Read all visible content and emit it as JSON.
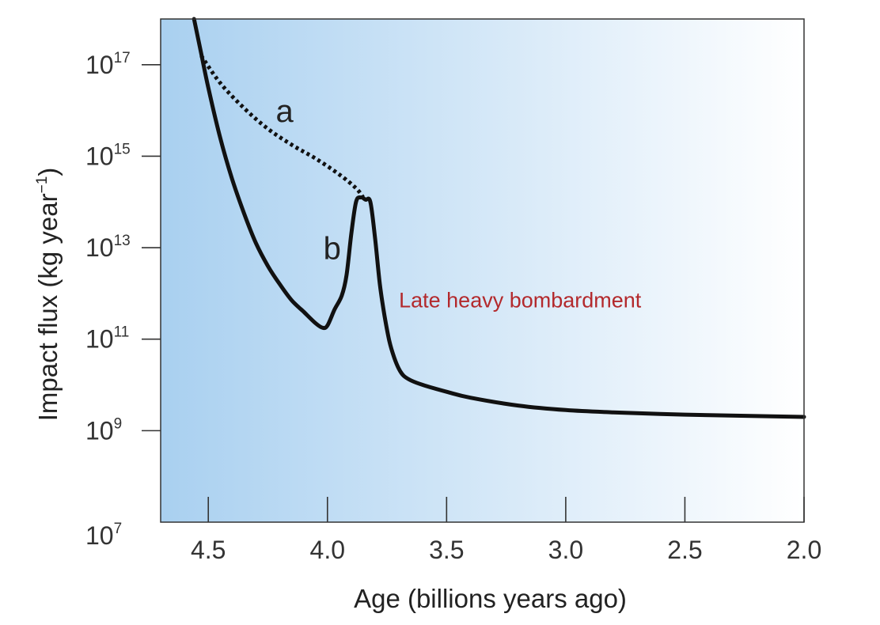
{
  "chart_data": {
    "type": "line",
    "title": "",
    "xlabel": "Age (billions years ago)",
    "ylabel_main": "Impact flux (kg year",
    "ylabel_sup": "−1",
    "ylabel_tail": ")",
    "xlim": [
      4.7,
      2.0
    ],
    "x_reversed": true,
    "ylim_exponent": [
      7,
      18
    ],
    "y_scale": "log10",
    "x_ticks": [
      {
        "value": 4.5,
        "label": "4.5"
      },
      {
        "value": 4.0,
        "label": "4.0"
      },
      {
        "value": 3.5,
        "label": "3.5"
      },
      {
        "value": 3.0,
        "label": "3.0"
      },
      {
        "value": 2.5,
        "label": "2.5"
      },
      {
        "value": 2.0,
        "label": "2.0"
      }
    ],
    "y_ticks": [
      {
        "exponent": 17,
        "base": "10",
        "sup": "17"
      },
      {
        "exponent": 15,
        "base": "10",
        "sup": "15"
      },
      {
        "exponent": 13,
        "base": "10",
        "sup": "13"
      },
      {
        "exponent": 11,
        "base": "10",
        "sup": "11"
      },
      {
        "exponent": 9,
        "base": "10",
        "sup": "9"
      },
      {
        "exponent": 7,
        "base": "10",
        "sup": "7"
      }
    ],
    "series": [
      {
        "label": "a",
        "style": "dotted",
        "x": [
          4.53,
          4.45,
          4.35,
          4.25,
          4.15,
          4.05,
          3.95,
          3.88,
          3.85
        ],
        "log_y": [
          17.2,
          16.6,
          16.05,
          15.6,
          15.25,
          14.95,
          14.6,
          14.3,
          14.1
        ]
      },
      {
        "label": "b",
        "style": "solid",
        "x": [
          4.56,
          4.53,
          4.5,
          4.45,
          4.4,
          4.35,
          4.3,
          4.25,
          4.2,
          4.15,
          4.1,
          4.05,
          4.02,
          4.0,
          3.97,
          3.94,
          3.92,
          3.9,
          3.88,
          3.86,
          3.84,
          3.82,
          3.8,
          3.78,
          3.76,
          3.74,
          3.72,
          3.7,
          3.68,
          3.65,
          3.6,
          3.5,
          3.4,
          3.2,
          3.0,
          2.8,
          2.5,
          2.2,
          2.0
        ],
        "log_y": [
          18.0,
          17.25,
          16.5,
          15.4,
          14.5,
          13.75,
          13.1,
          12.6,
          12.2,
          11.85,
          11.6,
          11.35,
          11.25,
          11.3,
          11.65,
          11.95,
          12.4,
          13.3,
          14.0,
          14.1,
          14.05,
          14.0,
          13.2,
          12.2,
          11.5,
          10.95,
          10.6,
          10.35,
          10.2,
          10.1,
          10.0,
          9.85,
          9.72,
          9.55,
          9.45,
          9.4,
          9.35,
          9.32,
          9.3
        ]
      }
    ],
    "annotations": [
      {
        "text": "Late heavy bombardment",
        "x": 3.7,
        "log_y": 11.7,
        "color": "#b3292c"
      }
    ],
    "background_gradient": {
      "from": "#a9d0f0",
      "to": "#ffffff",
      "direction": "left-to-right"
    },
    "grid": false,
    "legend": "none",
    "line_color": "#111111"
  }
}
